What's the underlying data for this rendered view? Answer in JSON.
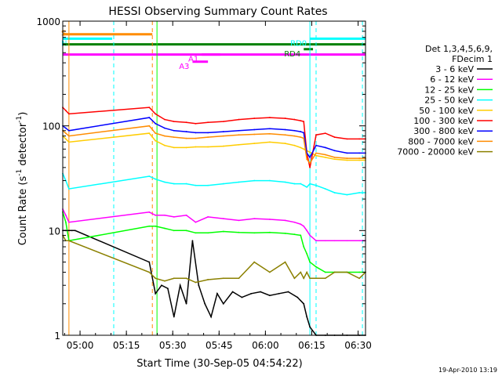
{
  "chart_data": {
    "type": "line",
    "title": "HESSI Observing Summary Count Rates",
    "xlabel": "Start Time (30-Sep-05 04:54:22)",
    "ylabel_main": "Count Rate (s",
    "ylabel_sup": "-1",
    "ylabel_tail": " detector",
    "ylabel_sup2": "-1",
    "ylabel_close": ")",
    "x_unit": "minutes since 04:54:22",
    "xlim": [
      0,
      98
    ],
    "ylim": [
      1,
      1000
    ],
    "yscale": "log",
    "x_ticks": [
      {
        "x": 5.6,
        "label": "05:00"
      },
      {
        "x": 20.6,
        "label": "05:15"
      },
      {
        "x": 35.6,
        "label": "05:30"
      },
      {
        "x": 50.6,
        "label": "05:45"
      },
      {
        "x": 65.6,
        "label": "06:00"
      },
      {
        "x": 80.6,
        "label": "06:15"
      },
      {
        "x": 95.6,
        "label": "06:30"
      }
    ],
    "y_ticks": [
      {
        "y": 1,
        "label": "1"
      },
      {
        "y": 10,
        "label": "10"
      },
      {
        "y": 100,
        "label": "100"
      },
      {
        "y": 1000,
        "label": "1000"
      }
    ],
    "legend": {
      "placement": "right",
      "title_lines": [
        "Det 1,3,4,5,6,9,",
        "FDecim 1"
      ]
    },
    "series": [
      {
        "name": "3 - 6 keV",
        "color": "#000000",
        "x": [
          0,
          1,
          2,
          3,
          4,
          28,
          30,
          32,
          34,
          36,
          38,
          40,
          42,
          44,
          46,
          48,
          50,
          52,
          55,
          58,
          61,
          64,
          67,
          70,
          73,
          76,
          78,
          79,
          80,
          82,
          85,
          88,
          92,
          96,
          98
        ],
        "y": [
          10,
          10,
          10,
          10,
          10,
          5,
          2.5,
          3,
          2.8,
          1.5,
          3,
          2,
          8,
          3,
          2,
          1.5,
          2.5,
          2,
          2.6,
          2.3,
          2.5,
          2.6,
          2.4,
          2.5,
          2.6,
          2.3,
          2,
          1.5,
          1.2,
          1,
          1,
          1,
          1,
          1,
          1
        ]
      },
      {
        "name": "6 - 12 keV",
        "color": "#ff00ff",
        "x": [
          0,
          1,
          2,
          28,
          30,
          33,
          36,
          40,
          43,
          47,
          52,
          57,
          62,
          67,
          72,
          75,
          77,
          78,
          79,
          80,
          82,
          85,
          88,
          92,
          96,
          98
        ],
        "y": [
          16,
          14,
          12,
          15,
          14,
          14,
          13.5,
          14,
          12,
          13.5,
          13,
          12.5,
          13,
          12.8,
          12.5,
          12,
          11.5,
          11,
          10,
          9,
          8,
          8,
          8,
          8,
          8,
          8
        ]
      },
      {
        "name": "12 - 25 keV",
        "color": "#00ff00",
        "x": [
          0,
          1,
          2,
          28,
          30,
          33,
          36,
          40,
          43,
          47,
          52,
          57,
          62,
          67,
          72,
          75,
          77,
          78,
          79,
          80,
          82,
          85,
          88,
          92,
          96,
          98
        ],
        "y": [
          15,
          12,
          8,
          11,
          11,
          10.5,
          10,
          10,
          9.5,
          9.5,
          9.8,
          9.6,
          9.5,
          9.6,
          9.4,
          9.2,
          9,
          7,
          6,
          5,
          4.5,
          4,
          4,
          4,
          4,
          4
        ]
      },
      {
        "name": "25 - 50 keV",
        "color": "#00ffff",
        "x": [
          0,
          1,
          2,
          28,
          30,
          33,
          36,
          40,
          43,
          47,
          52,
          57,
          62,
          67,
          72,
          75,
          77,
          78,
          79,
          80,
          82,
          85,
          88,
          92,
          96,
          98
        ],
        "y": [
          35,
          30,
          25,
          33,
          31,
          29,
          28,
          28,
          27,
          27,
          28,
          29,
          30,
          30,
          29,
          28,
          28,
          27,
          26,
          28,
          27,
          25,
          23,
          22,
          23,
          23
        ]
      },
      {
        "name": "50 - 100 keV",
        "color": "#ffcc00",
        "x": [
          0,
          1,
          2,
          28,
          30,
          33,
          36,
          40,
          43,
          47,
          52,
          57,
          62,
          67,
          72,
          75,
          77,
          78,
          79,
          80,
          82,
          85,
          88,
          92,
          96,
          98
        ],
        "y": [
          80,
          75,
          70,
          85,
          72,
          65,
          62,
          62,
          63,
          63,
          64,
          66,
          68,
          70,
          68,
          65,
          62,
          60,
          58,
          56,
          52,
          50,
          48,
          47,
          47,
          47
        ]
      },
      {
        "name": "100 - 300 keV",
        "color": "#ff0000",
        "x": [
          0,
          1,
          2,
          28,
          30,
          33,
          36,
          40,
          43,
          47,
          52,
          57,
          62,
          67,
          72,
          75,
          77,
          78,
          79,
          80,
          82,
          85,
          88,
          92,
          96,
          98
        ],
        "y": [
          150,
          140,
          130,
          150,
          130,
          115,
          110,
          108,
          105,
          108,
          110,
          115,
          118,
          120,
          118,
          115,
          112,
          110,
          55,
          40,
          82,
          85,
          78,
          75,
          75,
          75
        ]
      },
      {
        "name": "300 - 800 keV",
        "color": "#0000ff",
        "x": [
          0,
          1,
          2,
          28,
          30,
          33,
          36,
          40,
          43,
          47,
          52,
          57,
          62,
          67,
          72,
          75,
          77,
          78,
          79,
          80,
          82,
          85,
          88,
          92,
          96,
          98
        ],
        "y": [
          100,
          95,
          90,
          120,
          105,
          95,
          90,
          88,
          86,
          86,
          88,
          90,
          92,
          94,
          92,
          90,
          88,
          86,
          55,
          50,
          65,
          62,
          58,
          55,
          55,
          55
        ]
      },
      {
        "name": "800 - 7000 keV",
        "color": "#ff8c00",
        "x": [
          0,
          1,
          2,
          28,
          30,
          33,
          36,
          40,
          43,
          47,
          52,
          57,
          62,
          67,
          72,
          75,
          77,
          78,
          79,
          80,
          82,
          85,
          88,
          92,
          96,
          98
        ],
        "y": [
          90,
          85,
          80,
          100,
          85,
          80,
          78,
          76,
          76,
          78,
          80,
          82,
          83,
          84,
          82,
          80,
          78,
          76,
          48,
          44,
          55,
          53,
          50,
          49,
          49,
          49
        ]
      },
      {
        "name": "7000 - 20000 keV",
        "color": "#8b8000",
        "x": [
          0,
          1,
          2,
          28,
          30,
          33,
          36,
          40,
          43,
          47,
          52,
          57,
          62,
          67,
          72,
          75,
          77,
          78,
          79,
          80,
          82,
          85,
          88,
          92,
          96,
          98
        ],
        "y": [
          9,
          8,
          8,
          4,
          3.5,
          3.3,
          3.5,
          3.5,
          3.2,
          3.4,
          3.5,
          3.5,
          5,
          4,
          5,
          3.5,
          4,
          3.5,
          4,
          3.5,
          3.5,
          3.5,
          4,
          4,
          3.5,
          4
        ]
      }
    ],
    "bars": [
      {
        "label": "S",
        "color": "#ff8c00",
        "x0": 0,
        "x1": 29,
        "y": 750
      },
      {
        "label": "N",
        "color": "#00ffff",
        "x0": 0,
        "x1": 16,
        "y": 680
      },
      {
        "label": "",
        "color": "#008000",
        "x0": 0,
        "x1": 98,
        "y": 600
      },
      {
        "label": "",
        "color": "#ff00ff",
        "x0": 0,
        "x1": 98,
        "y": 480
      },
      {
        "label": "RD0",
        "color": "#00ffff",
        "x0": 80,
        "x1": 98,
        "y": 680
      },
      {
        "label": "RD4",
        "color": "#008000",
        "x0": 78,
        "x1": 81,
        "y": 540
      },
      {
        "label": "A1",
        "color": "#ff00ff",
        "x0": 45,
        "x1": 51,
        "y": 480
      },
      {
        "label": "A3",
        "color": "#ff00ff",
        "x0": 42,
        "x1": 47,
        "y": 410
      }
    ],
    "vlines": [
      {
        "x": 0,
        "color": "#00ffff",
        "dashed": false
      },
      {
        "x": 2,
        "color": "#ff8c00",
        "dashed": false
      },
      {
        "x": 16.5,
        "color": "#00ffff",
        "dashed": true
      },
      {
        "x": 29,
        "color": "#ff8c00",
        "dashed": true
      },
      {
        "x": 30.5,
        "color": "#00ff00",
        "dashed": false
      },
      {
        "x": 80,
        "color": "#00ffff",
        "dashed": false
      },
      {
        "x": 82,
        "color": "#00ffff",
        "dashed": true
      },
      {
        "x": 97,
        "color": "#00ffff",
        "dashed": true
      }
    ],
    "timestamp": "19-Apr-2010 13:19",
    "grid": false
  }
}
